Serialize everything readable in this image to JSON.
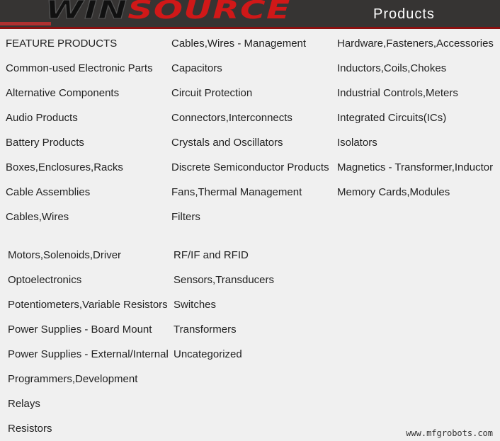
{
  "header": {
    "logo_part1": "WIN",
    "logo_part2": "SOURCE",
    "title": "Products"
  },
  "section1": [
    [
      "FEATURE PRODUCTS",
      "Common-used Electronic Parts",
      "Alternative Components",
      "Audio Products",
      "Battery Products",
      "Boxes,Enclosures,Racks",
      "Cable Assemblies",
      "Cables,Wires"
    ],
    [
      "Cables,Wires - Management",
      "Capacitors",
      "Circuit Protection",
      "Connectors,Interconnects",
      "Crystals and Oscillators",
      "Discrete Semiconductor Products",
      "Fans,Thermal Management",
      "Filters"
    ],
    [
      "Hardware,Fasteners,Accessories",
      "Inductors,Coils,Chokes",
      "Industrial Controls,Meters",
      "Integrated Circuits(ICs)",
      "Isolators",
      "Magnetics - Transformer,Inductor",
      "Memory Cards,Modules"
    ]
  ],
  "section2": [
    [
      "Motors,Solenoids,Driver",
      "Optoelectronics",
      "Potentiometers,Variable Resistors",
      "Power Supplies - Board Mount",
      "Power Supplies - External/Internal",
      "Programmers,Development",
      "Relays",
      "Resistors"
    ],
    [
      "RF/IF and RFID",
      "Sensors,Transducers",
      "Switches",
      "Transformers",
      "Uncategorized"
    ]
  ],
  "watermark": "www.mfgrobots.com"
}
